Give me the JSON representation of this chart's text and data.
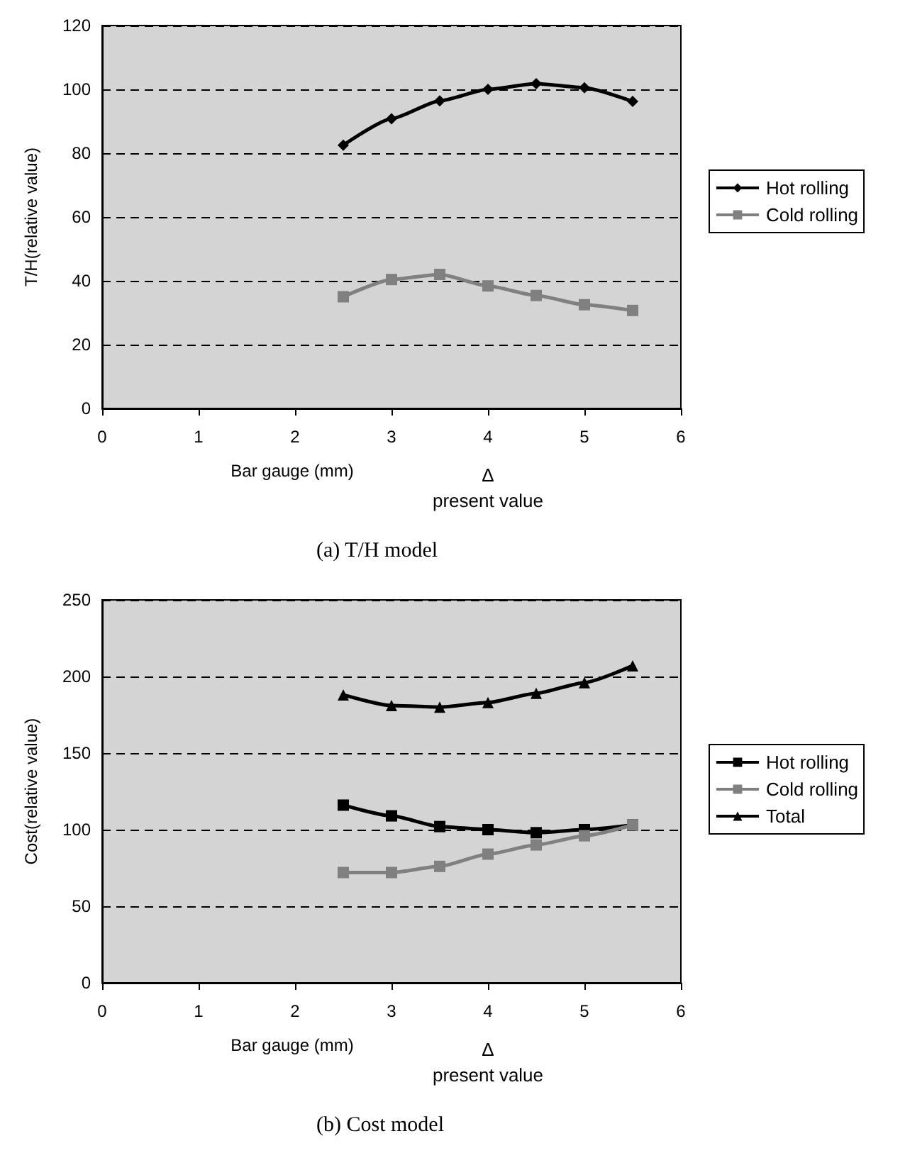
{
  "chart_data": [
    {
      "type": "line",
      "title": "(a) T/H model",
      "xlabel": "Bar gauge (mm)",
      "ylabel": "T/H(relative value)",
      "x": [
        2.5,
        3,
        3.5,
        4,
        4.5,
        5,
        5.5
      ],
      "xlim": [
        0,
        6
      ],
      "xticks": [
        0,
        1,
        2,
        3,
        4,
        5,
        6
      ],
      "ylim": [
        0,
        120
      ],
      "yticks": [
        0,
        20,
        40,
        60,
        80,
        100,
        120
      ],
      "grid": "y",
      "legend": "right",
      "annotations": [
        "Δ\npresent value"
      ],
      "series": [
        {
          "name": "Hot rolling",
          "color": "#000000",
          "marker": "diamond",
          "values": [
            82.5,
            90.8,
            96.4,
            100,
            101.8,
            100.5,
            96.2
          ]
        },
        {
          "name": "Cold rolling",
          "color": "#808080",
          "marker": "square",
          "values": [
            35,
            40.4,
            42,
            38.4,
            35.4,
            32.5,
            30.7
          ]
        }
      ]
    },
    {
      "type": "line",
      "title": "(b) Cost model",
      "xlabel": "Bar gauge (mm)",
      "ylabel": "Cost(relative value)",
      "x": [
        2.5,
        3,
        3.5,
        4,
        4.5,
        5,
        5.5
      ],
      "xlim": [
        0,
        6
      ],
      "xticks": [
        0,
        1,
        2,
        3,
        4,
        5,
        6
      ],
      "ylim": [
        0,
        250
      ],
      "yticks": [
        0,
        50,
        100,
        150,
        200,
        250
      ],
      "grid": "y",
      "legend": "right",
      "annotations": [
        "Δ\npresent value"
      ],
      "series": [
        {
          "name": "Hot rolling",
          "color": "#000000",
          "marker": "square",
          "values": [
            116,
            109,
            102,
            100,
            98,
            100,
            103
          ]
        },
        {
          "name": "Cold rolling",
          "color": "#808080",
          "marker": "square",
          "values": [
            72,
            72,
            76,
            84,
            90,
            96,
            103
          ]
        },
        {
          "name": "Total",
          "color": "#000000",
          "marker": "triangle",
          "values": [
            188,
            181,
            180,
            183,
            189,
            196,
            207
          ]
        }
      ]
    }
  ]
}
